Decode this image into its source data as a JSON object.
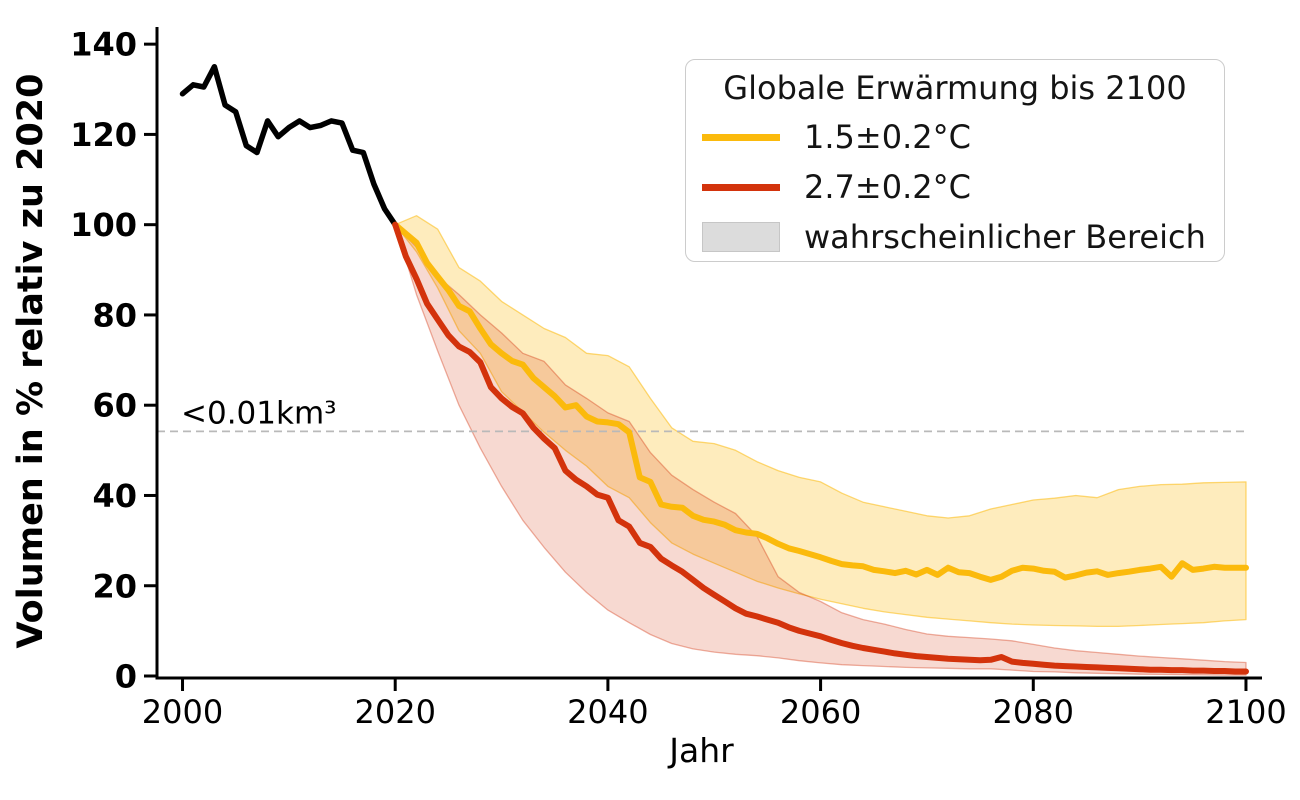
{
  "chart_data": {
    "type": "line",
    "title": "",
    "xlabel": "Jahr",
    "ylabel": "Volumen in % relativ zu 2020",
    "x_ticks": [
      2000,
      2020,
      2040,
      2060,
      2080,
      2100
    ],
    "y_ticks": [
      0,
      20,
      40,
      60,
      80,
      100,
      120,
      140
    ],
    "xlim": [
      1997.6,
      2100.05
    ],
    "ylim": [
      0,
      143.8
    ],
    "grid": false,
    "legend_position": "upper right",
    "threshold": {
      "label": "<0.01km³",
      "value": 54.2,
      "line_color": "#b9b9b9",
      "text_color": "#a8a8a8"
    },
    "legend": {
      "title": "Globale Erwärmung bis 2100",
      "entries": [
        {
          "label": "1.5±0.2°C",
          "type": "line",
          "color": "#FBBA0C"
        },
        {
          "label": "2.7±0.2°C",
          "type": "line",
          "color": "#D3330C"
        },
        {
          "label": "wahrscheinlicher Bereich",
          "type": "patch",
          "color": "#DCDCDC",
          "border": "#C6C6C6"
        }
      ]
    },
    "series": [
      {
        "name": "historisch",
        "color": "#000000",
        "width": 5.5,
        "year_start": 2000,
        "year_step": 1,
        "values": [
          129,
          131,
          130.5,
          135,
          126.5,
          125,
          117.5,
          116,
          123,
          119.5,
          121.5,
          123,
          121.5,
          122,
          123,
          122.5,
          116.5,
          116,
          109,
          103.5,
          100
        ]
      },
      {
        "name": "1.5±0.2°C",
        "color": "#FBBA0C",
        "width": 6,
        "year_start": 2020,
        "year_step": 1,
        "values": [
          100,
          98,
          96,
          91.5,
          88.5,
          85.5,
          82,
          80.8,
          77,
          73.5,
          71.5,
          69.8,
          69,
          66,
          64,
          62,
          59.5,
          60,
          57.5,
          56.4,
          56.2,
          55.8,
          54,
          44,
          43,
          38,
          37.5,
          37.3,
          35.5,
          34.6,
          34.2,
          33.5,
          32.3,
          31.8,
          31.5,
          30.5,
          29.3,
          28.3,
          27.7,
          27,
          26.3,
          25.5,
          24.8,
          24.5,
          24.3,
          23.5,
          23.2,
          22.8,
          23.3,
          22.5,
          23.5,
          22.4,
          24,
          23,
          22.8,
          22,
          21.3,
          22,
          23.3,
          24,
          23.8,
          23.3,
          23.1,
          21.8,
          22.3,
          22.9,
          23.2,
          22.4,
          22.8,
          23.1,
          23.5,
          23.8,
          24.2,
          22,
          25,
          23.5,
          23.8,
          24.2,
          24,
          24,
          24
        ]
      },
      {
        "name": "2.7±0.2°C",
        "color": "#D3330C",
        "width": 6,
        "year_start": 2020,
        "year_step": 1,
        "values": [
          100,
          93,
          88,
          82.5,
          79,
          75.5,
          73,
          71.8,
          69.5,
          64,
          61.5,
          59.6,
          58.2,
          55,
          52.6,
          50.5,
          45.5,
          43.5,
          42,
          40.2,
          39.5,
          34.5,
          33.1,
          29.5,
          28.6,
          26,
          24.5,
          23.1,
          21.3,
          19.5,
          18,
          16.5,
          15,
          13.8,
          13.2,
          12.5,
          11.8,
          10.8,
          10,
          9.4,
          8.8,
          8,
          7.3,
          6.7,
          6.2,
          5.8,
          5.4,
          5,
          4.7,
          4.4,
          4.2,
          4,
          3.8,
          3.7,
          3.6,
          3.5,
          3.6,
          4.2,
          3.2,
          2.9,
          2.7,
          2.5,
          2.3,
          2.2,
          2.1,
          2,
          1.9,
          1.8,
          1.7,
          1.6,
          1.5,
          1.4,
          1.4,
          1.3,
          1.3,
          1.2,
          1.2,
          1.1,
          1.1,
          1,
          1
        ]
      }
    ],
    "bands": [
      {
        "name": "wahrscheinlicher Bereich 1.5°C",
        "fill": "rgba(251,186,12,0.27)",
        "edge": "rgba(251,186,12,0.55)",
        "year_start": 2020,
        "year_step": 2,
        "upper": [
          100,
          102,
          99,
          90.5,
          87.5,
          83,
          80,
          77,
          75,
          71.5,
          71,
          68.5,
          61.5,
          55,
          52,
          51.5,
          50,
          47.5,
          45.5,
          44,
          43,
          40.5,
          38.5,
          37.5,
          36.5,
          35.5,
          35,
          35.5,
          37,
          38,
          39,
          39.4,
          40,
          39.5,
          41.3,
          42,
          42.4,
          42.5,
          42.8,
          42.9,
          43
        ],
        "lower": [
          100,
          94,
          86,
          76.5,
          71.5,
          63,
          58.5,
          54,
          50,
          46.5,
          42,
          39.5,
          34,
          29.5,
          27,
          25,
          23,
          21,
          19.5,
          18.2,
          17,
          16,
          15,
          14.2,
          13.6,
          13,
          12.6,
          12.2,
          11.8,
          11.5,
          11.3,
          11.2,
          11.1,
          11,
          11,
          11.2,
          11.4,
          11.6,
          11.8,
          12.2,
          12.5
        ]
      },
      {
        "name": "wahrscheinlicher Bereich 2.7°C",
        "fill": "rgba(211,51,12,0.19)",
        "edge": "rgba(211,51,12,0.38)",
        "year_start": 2020,
        "year_step": 2,
        "upper": [
          100,
          95,
          88.5,
          84.5,
          80,
          76,
          71.5,
          69.7,
          64.5,
          61.5,
          58.3,
          56.4,
          49.5,
          44.5,
          41.3,
          38.5,
          36,
          31,
          22,
          18.5,
          16.5,
          14,
          12.5,
          11.5,
          10.3,
          9.3,
          8.8,
          8.5,
          8.2,
          7.8,
          7,
          6.2,
          5.6,
          5.2,
          4.8,
          4.4,
          4.1,
          3.8,
          3.5,
          3.2,
          3
        ],
        "lower": [
          100,
          84.5,
          72,
          60,
          50.5,
          42,
          34.5,
          28.5,
          23,
          18.5,
          14.6,
          11.8,
          9.2,
          7.2,
          6,
          5.3,
          4.8,
          4.5,
          4,
          3.4,
          2.9,
          2.5,
          2.3,
          2.1,
          1.9,
          1.8,
          1.7,
          1.6,
          1.6,
          1.3,
          1,
          0.9,
          0.7,
          0.6,
          0.5,
          0.4,
          0.35,
          0.3,
          0.25,
          0.2,
          0.2
        ]
      }
    ]
  }
}
